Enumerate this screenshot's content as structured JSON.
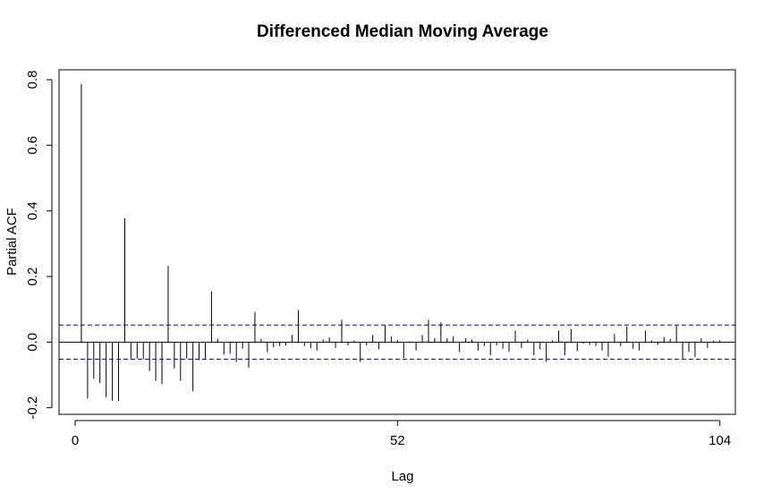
{
  "chart_data": {
    "type": "bar",
    "title": "Differenced Median Moving Average",
    "xlabel": "Lag",
    "ylabel": "Partial ACF",
    "xlim": [
      -2.6,
      106.5
    ],
    "ylim": [
      -0.22,
      0.83
    ],
    "x_ticks": [
      {
        "value": 0,
        "label": "0"
      },
      {
        "value": 52,
        "label": "52"
      },
      {
        "value": 104,
        "label": "104"
      }
    ],
    "y_ticks": [
      {
        "value": -0.2,
        "label": "-0.2"
      },
      {
        "value": 0.0,
        "label": "0.0"
      },
      {
        "value": 0.2,
        "label": "0.2"
      },
      {
        "value": 0.4,
        "label": "0.4"
      },
      {
        "value": 0.6,
        "label": "0.6"
      },
      {
        "value": 0.8,
        "label": "0.8"
      }
    ],
    "confidence_bound": 0.052,
    "confidence_line_color": "#00008b",
    "lags": [
      1,
      2,
      3,
      4,
      5,
      6,
      7,
      8,
      9,
      10,
      11,
      12,
      13,
      14,
      15,
      16,
      17,
      18,
      19,
      20,
      21,
      22,
      23,
      24,
      25,
      26,
      27,
      28,
      29,
      30,
      31,
      32,
      33,
      34,
      35,
      36,
      37,
      38,
      39,
      40,
      41,
      42,
      43,
      44,
      45,
      46,
      47,
      48,
      49,
      50,
      51,
      52,
      53,
      54,
      55,
      56,
      57,
      58,
      59,
      60,
      61,
      62,
      63,
      64,
      65,
      66,
      67,
      68,
      69,
      70,
      71,
      72,
      73,
      74,
      75,
      76,
      77,
      78,
      79,
      80,
      81,
      82,
      83,
      84,
      85,
      86,
      87,
      88,
      89,
      90,
      91,
      92,
      93,
      94,
      95,
      96,
      97,
      98,
      99,
      100,
      101,
      102,
      103,
      104
    ],
    "values": [
      0.787,
      -0.172,
      -0.112,
      -0.125,
      -0.168,
      -0.178,
      -0.18,
      0.378,
      -0.05,
      -0.05,
      -0.052,
      -0.088,
      -0.118,
      -0.128,
      0.232,
      -0.08,
      -0.118,
      -0.05,
      -0.15,
      -0.055,
      -0.05,
      0.154,
      0.01,
      -0.038,
      -0.035,
      -0.06,
      -0.02,
      -0.078,
      0.092,
      0.01,
      -0.03,
      -0.015,
      -0.012,
      -0.01,
      0.022,
      0.098,
      -0.012,
      -0.018,
      -0.025,
      0.008,
      0.014,
      -0.018,
      0.068,
      -0.01,
      0.005,
      -0.06,
      -0.01,
      0.022,
      -0.022,
      0.05,
      0.018,
      0.006,
      -0.048,
      0.002,
      -0.025,
      0.022,
      0.068,
      0.012,
      0.06,
      0.012,
      0.018,
      -0.03,
      0.012,
      0.008,
      -0.025,
      -0.012,
      -0.04,
      -0.01,
      -0.02,
      -0.03,
      0.035,
      -0.018,
      0.008,
      -0.04,
      -0.022,
      -0.06,
      0.005,
      0.035,
      -0.04,
      0.04,
      -0.028,
      -0.005,
      -0.008,
      -0.012,
      -0.025,
      -0.045,
      0.025,
      -0.012,
      0.048,
      -0.02,
      -0.025,
      0.035,
      0.005,
      -0.008,
      0.015,
      0.01,
      0.05,
      -0.05,
      -0.03,
      -0.045,
      0.012,
      -0.018,
      0.005,
      0.005
    ]
  }
}
